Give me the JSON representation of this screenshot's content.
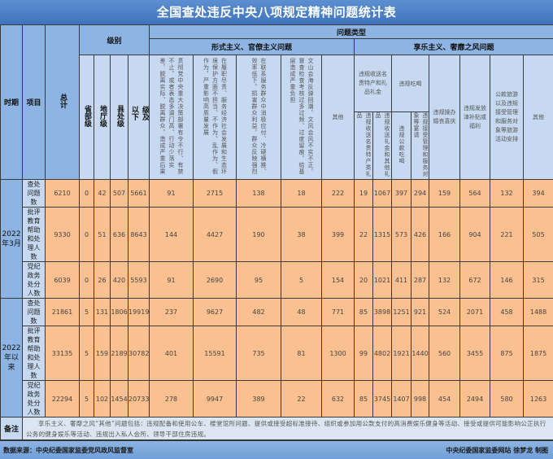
{
  "title": "全国查处违反中央八项规定精神问题统计表",
  "header": {
    "period": "时期",
    "item": "项目",
    "total": "总计",
    "level": "级别",
    "problem_type": "问题类型",
    "levels": [
      "省部级",
      "地厅级",
      "县处级",
      "乡科级及以下"
    ],
    "formalism": {
      "label": "形式主义、官僚主义问题",
      "columns": [
        "贯彻党中央重大决策部署有令不行、有禁不止，或者表态多调门高、行动少落实差，脱离实际、脱离群众，造成严重后果",
        "在履职尽责、服务经济社会发展和生态环境保护方面不担当、不作为、乱作为、假作为，严重影响高质量发展",
        "在联系服务群众中消极应付、冷硬横推、效率低下，损害群众利益，群众反映强烈",
        "文山会海反弹回潮，文风会风不实不正，督查检查考核过多过频、过度留痕，给基层造成严重负担",
        "其他"
      ]
    },
    "hedonism": {
      "label": "享乐主义、奢靡之风问题",
      "gifts": {
        "label": "违规收送名贵特产和礼品礼金",
        "subs": [
          "违规收送名贵特产类礼品",
          "违规收送礼金和其他礼品"
        ]
      },
      "dining": {
        "label": "违规吃喝",
        "subs": [
          "违规公款吃喝",
          "违规接受管理和服务对象等宴请"
        ]
      },
      "columns": [
        "违规操办婚丧喜庆",
        "违规发放津补贴或福利",
        "公款旅游以及违规接受管理和服务对象等旅游活动安排",
        "其他"
      ]
    }
  },
  "groups": [
    {
      "period": "2022年3月",
      "rows": [
        {
          "item": "查处问题数",
          "values": [
            "6210",
            "0",
            "42",
            "507",
            "5661",
            "91",
            "2715",
            "138",
            "18",
            "222",
            "19",
            "1067",
            "397",
            "294",
            "159",
            "564",
            "132",
            "394"
          ]
        },
        {
          "item": "批评教育帮助和处理人数",
          "values": [
            "9330",
            "0",
            "51",
            "636",
            "8643",
            "144",
            "4427",
            "190",
            "38",
            "399",
            "22",
            "1315",
            "573",
            "426",
            "166",
            "904",
            "221",
            "505"
          ]
        },
        {
          "item": "党纪政务处分人数",
          "values": [
            "6039",
            "0",
            "26",
            "420",
            "5593",
            "91",
            "2690",
            "95",
            "5",
            "154",
            "20",
            "1021",
            "411",
            "287",
            "132",
            "672",
            "146",
            "315"
          ]
        }
      ]
    },
    {
      "period": "2022年以来",
      "rows": [
        {
          "item": "查处问题数",
          "values": [
            "21861",
            "5",
            "131",
            "1806",
            "19919",
            "237",
            "9627",
            "482",
            "48",
            "771",
            "85",
            "3898",
            "1251",
            "921",
            "524",
            "2071",
            "458",
            "1488"
          ]
        },
        {
          "item": "批评教育帮助和处理人数",
          "values": [
            "33135",
            "5",
            "159",
            "2189",
            "30782",
            "401",
            "15591",
            "735",
            "81",
            "1300",
            "99",
            "4802",
            "1921",
            "1440",
            "560",
            "3455",
            "875",
            "1875"
          ]
        },
        {
          "item": "党纪政务处分人数",
          "values": [
            "22294",
            "5",
            "102",
            "1454",
            "20733",
            "278",
            "9947",
            "389",
            "22",
            "632",
            "85",
            "3745",
            "1407",
            "998",
            "454",
            "2494",
            "580",
            "1263"
          ]
        }
      ]
    }
  ],
  "note": {
    "label": "备注",
    "text": "享乐主义、奢靡之风“其他”问题包括：违规配备和使用公车、楼堂馆所问题、提供或接受超标准接待、组织或参加用公款支付的高消费娱乐健身等活动、接受或提供可能影响公正执行公务的健身娱乐等活动、违规出入私人会所、领导干部住房违规。"
  },
  "footer": {
    "source": "数据来源：中央纪委国家监委党风政风监督室",
    "credit": "中央纪委国家监委网站 徐梦龙 制图"
  },
  "colors": {
    "header_blue": "#8db4e2",
    "header_light": "#c6d9f0",
    "data_orange": "#fac090",
    "title_blue": "#3f74bd"
  }
}
